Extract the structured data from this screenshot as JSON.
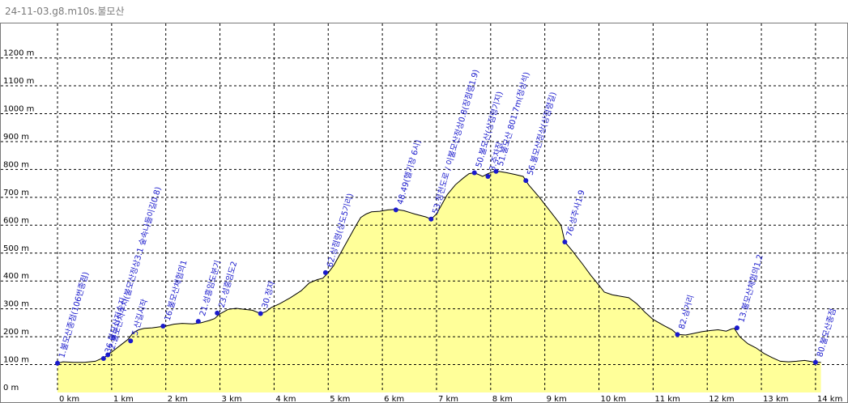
{
  "window": {
    "title": "24-11-03.g8.m10s.불모산"
  },
  "chart_data": {
    "type": "area",
    "title": "",
    "xlabel": "",
    "ylabel": "",
    "xlim": [
      0,
      14.3
    ],
    "ylim": [
      0,
      1300
    ],
    "grid": true,
    "fill_color": "#ffff99",
    "line_color": "#000000",
    "waypoint_color": "#1a1acc",
    "x_ticks": [
      {
        "v": 0,
        "label": "0 km"
      },
      {
        "v": 1,
        "label": "1 km"
      },
      {
        "v": 2,
        "label": "2 km"
      },
      {
        "v": 3,
        "label": "3 km"
      },
      {
        "v": 4,
        "label": "4 km"
      },
      {
        "v": 5,
        "label": "5 km"
      },
      {
        "v": 6,
        "label": "6 km"
      },
      {
        "v": 7,
        "label": "7 km"
      },
      {
        "v": 8,
        "label": "8 km"
      },
      {
        "v": 9,
        "label": "9 km"
      },
      {
        "v": 10,
        "label": "10 km"
      },
      {
        "v": 11,
        "label": "11 km"
      },
      {
        "v": 12,
        "label": "12 km"
      },
      {
        "v": 13,
        "label": "13 km"
      },
      {
        "v": 14,
        "label": "14 km"
      }
    ],
    "y_ticks": [
      {
        "v": 0,
        "label": "0 m"
      },
      {
        "v": 100,
        "label": "100 m"
      },
      {
        "v": 200,
        "label": "200 m"
      },
      {
        "v": 300,
        "label": "300 m"
      },
      {
        "v": 400,
        "label": "400 m"
      },
      {
        "v": 500,
        "label": "500 m"
      },
      {
        "v": 600,
        "label": "600 m"
      },
      {
        "v": 700,
        "label": "700 m"
      },
      {
        "v": 800,
        "label": "800 m"
      },
      {
        "v": 900,
        "label": "900 m"
      },
      {
        "v": 1000,
        "label": "1000 m"
      },
      {
        "v": 1100,
        "label": "1100 m"
      },
      {
        "v": 1200,
        "label": "1200 m"
      }
    ],
    "profile": [
      [
        0,
        105
      ],
      [
        0.1,
        110
      ],
      [
        0.3,
        108
      ],
      [
        0.5,
        108
      ],
      [
        0.7,
        112
      ],
      [
        0.85,
        125
      ],
      [
        0.9,
        130
      ],
      [
        1.0,
        145
      ],
      [
        1.1,
        160
      ],
      [
        1.2,
        175
      ],
      [
        1.3,
        190
      ],
      [
        1.4,
        215
      ],
      [
        1.5,
        225
      ],
      [
        1.6,
        230
      ],
      [
        1.75,
        232
      ],
      [
        1.9,
        236
      ],
      [
        2.0,
        238
      ],
      [
        2.15,
        245
      ],
      [
        2.3,
        248
      ],
      [
        2.5,
        246
      ],
      [
        2.65,
        250
      ],
      [
        2.8,
        258
      ],
      [
        2.9,
        265
      ],
      [
        3.0,
        282
      ],
      [
        3.15,
        298
      ],
      [
        3.3,
        302
      ],
      [
        3.45,
        298
      ],
      [
        3.6,
        295
      ],
      [
        3.75,
        283
      ],
      [
        3.85,
        290
      ],
      [
        3.95,
        305
      ],
      [
        4.1,
        318
      ],
      [
        4.3,
        340
      ],
      [
        4.5,
        365
      ],
      [
        4.65,
        393
      ],
      [
        4.8,
        405
      ],
      [
        4.9,
        410
      ],
      [
        5.0,
        430
      ],
      [
        5.1,
        455
      ],
      [
        5.2,
        490
      ],
      [
        5.3,
        525
      ],
      [
        5.4,
        560
      ],
      [
        5.5,
        595
      ],
      [
        5.6,
        628
      ],
      [
        5.7,
        640
      ],
      [
        5.8,
        648
      ],
      [
        5.95,
        650
      ],
      [
        6.1,
        655
      ],
      [
        6.25,
        657
      ],
      [
        6.4,
        652
      ],
      [
        6.6,
        640
      ],
      [
        6.8,
        630
      ],
      [
        6.9,
        622
      ],
      [
        7.0,
        640
      ],
      [
        7.1,
        675
      ],
      [
        7.2,
        710
      ],
      [
        7.35,
        745
      ],
      [
        7.5,
        770
      ],
      [
        7.6,
        785
      ],
      [
        7.7,
        788
      ],
      [
        7.8,
        780
      ],
      [
        7.85,
        775
      ],
      [
        7.95,
        785
      ],
      [
        8.05,
        792
      ],
      [
        8.15,
        793
      ],
      [
        8.3,
        788
      ],
      [
        8.45,
        782
      ],
      [
        8.6,
        775
      ],
      [
        8.7,
        745
      ],
      [
        8.9,
        700
      ],
      [
        9.1,
        650
      ],
      [
        9.3,
        600
      ],
      [
        9.37,
        540
      ],
      [
        9.5,
        510
      ],
      [
        9.7,
        460
      ],
      [
        9.85,
        420
      ],
      [
        10.0,
        385
      ],
      [
        10.1,
        360
      ],
      [
        10.25,
        350
      ],
      [
        10.4,
        345
      ],
      [
        10.55,
        340
      ],
      [
        10.7,
        318
      ],
      [
        10.85,
        288
      ],
      [
        11.0,
        262
      ],
      [
        11.2,
        240
      ],
      [
        11.35,
        225
      ],
      [
        11.45,
        208
      ],
      [
        11.6,
        206
      ],
      [
        11.75,
        212
      ],
      [
        11.9,
        218
      ],
      [
        12.05,
        222
      ],
      [
        12.2,
        225
      ],
      [
        12.35,
        220
      ],
      [
        12.45,
        228
      ],
      [
        12.5,
        230
      ],
      [
        12.6,
        200
      ],
      [
        12.75,
        175
      ],
      [
        12.9,
        160
      ],
      [
        13.05,
        140
      ],
      [
        13.2,
        125
      ],
      [
        13.35,
        112
      ],
      [
        13.5,
        110
      ],
      [
        13.65,
        112
      ],
      [
        13.8,
        115
      ],
      [
        13.95,
        110
      ],
      [
        14.05,
        108
      ],
      [
        14.1,
        108
      ]
    ],
    "waypoints": [
      {
        "x": 0.0,
        "y": 105,
        "label": "1.불모산종점(106번종점)"
      },
      {
        "x": 0.85,
        "y": 122,
        "label": "36.불모산저수지"
      },
      {
        "x": 0.93,
        "y": 135,
        "label": "2.불모산저수지(불모산정상3.1 숲속나들이길0.8)"
      },
      {
        "x": 1.35,
        "y": 185,
        "label": "5.산길시작"
      },
      {
        "x": 1.95,
        "y": 238,
        "label": "16.불모산체험의1"
      },
      {
        "x": 2.6,
        "y": 255,
        "label": "21.성흥임도분기"
      },
      {
        "x": 2.95,
        "y": 285,
        "label": "23.성흥임도2"
      },
      {
        "x": 3.75,
        "y": 283,
        "label": "30.정자"
      },
      {
        "x": 4.95,
        "y": 430,
        "label": "62.상점령(상도5기리)"
      },
      {
        "x": 6.25,
        "y": 655,
        "label": "48.49(헬기장 6시)"
      },
      {
        "x": 6.9,
        "y": 622,
        "label": "53.정천도로 / 이불모산정상0.8(장점령1.9)"
      },
      {
        "x": 7.7,
        "y": 788,
        "label": "50.불모산(상점령기지)"
      },
      {
        "x": 7.95,
        "y": 775,
        "label": "3.주차장"
      },
      {
        "x": 8.1,
        "y": 793,
        "label": "51.불모산 801.7m(정상석)"
      },
      {
        "x": 8.65,
        "y": 760,
        "label": "56.불모산정상(상점령길)"
      },
      {
        "x": 9.37,
        "y": 540,
        "label": "76.성주사1.9"
      },
      {
        "x": 11.45,
        "y": 208,
        "label": "82.삼거리"
      },
      {
        "x": 12.55,
        "y": 232,
        "label": "13.불모산체험의1.2"
      },
      {
        "x": 14.0,
        "y": 108,
        "label": "80.불모산종점"
      }
    ]
  }
}
